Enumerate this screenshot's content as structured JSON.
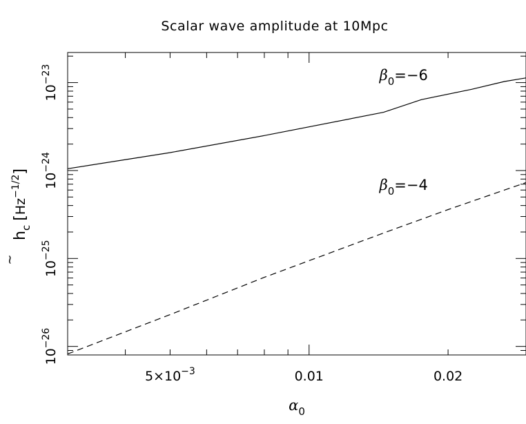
{
  "chart_data": {
    "type": "line",
    "title": "Scalar wave amplitude at 10Mpc",
    "x_scale": "log",
    "y_scale": "log",
    "xlim": [
      0.003,
      0.0295
    ],
    "ylim": [
      8e-27,
      2.2e-23
    ],
    "xlabel": {
      "symbol": "α",
      "sub": "0"
    },
    "ylabel": {
      "symbol": "h",
      "accent": "~",
      "sub": "c",
      "unit_base": "Hz",
      "unit_exp": "−1/2"
    },
    "x_ticks": [
      {
        "value": 0.005,
        "mant": "5×10",
        "exp": "−3"
      },
      {
        "value": 0.01,
        "label": "0.01"
      },
      {
        "value": 0.02,
        "label": "0.02"
      }
    ],
    "y_ticks": [
      {
        "value": 1e-26,
        "mant": "10",
        "exp": "−26"
      },
      {
        "value": 1e-25,
        "mant": "10",
        "exp": "−25"
      },
      {
        "value": 1e-24,
        "mant": "10",
        "exp": "−24"
      },
      {
        "value": 1e-23,
        "mant": "10",
        "exp": "−23"
      }
    ],
    "grid": false,
    "series": [
      {
        "style": "solid",
        "x": [
          0.003,
          0.005,
          0.008,
          0.0145,
          0.0175,
          0.0225,
          0.0265,
          0.0295
        ],
        "y": [
          1.05e-24,
          1.6e-24,
          2.5e-24,
          4.6e-24,
          6.4e-24,
          8.4e-24,
          1.03e-23,
          1.13e-23
        ],
        "label": {
          "symbol": "β",
          "sub": "0",
          "text": "=−6",
          "x": 0.0142,
          "y": 1.07e-23
        }
      },
      {
        "style": "dashed",
        "x": [
          0.003,
          0.005,
          0.008,
          0.0145,
          0.02,
          0.0265,
          0.0295
        ],
        "y": [
          8.2e-27,
          2.3e-26,
          6.1e-26,
          1.95e-25,
          3.6e-25,
          6e-25,
          7.3e-25
        ],
        "label": {
          "symbol": "β",
          "sub": "0",
          "text": "=−4",
          "x": 0.0142,
          "y": 6e-25
        }
      }
    ]
  }
}
